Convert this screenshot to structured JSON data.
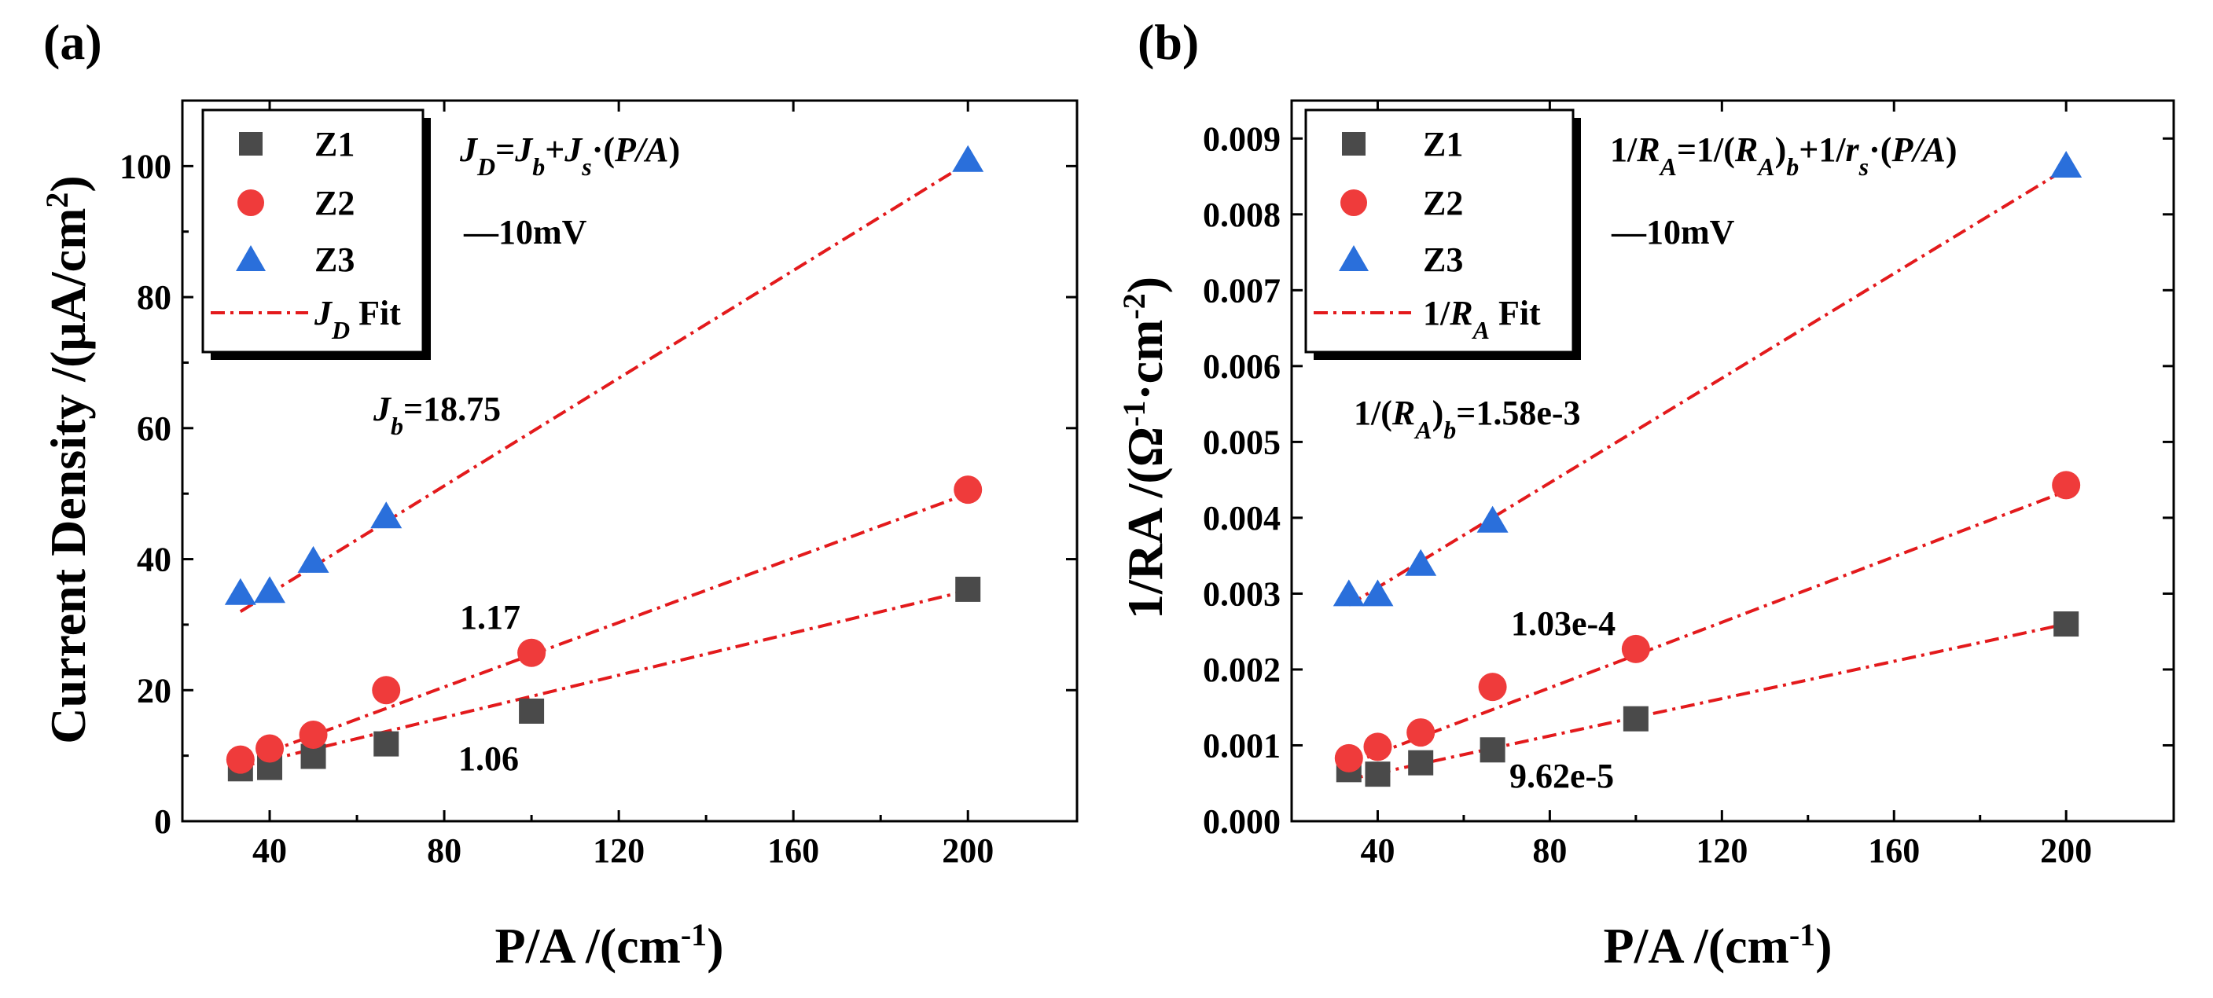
{
  "figure": {
    "panels": [
      {
        "panel_label": "(a)",
        "equation": {
          "p1": "J",
          "p1s": "D",
          "p2": "=",
          "p3": "J",
          "p3s": "b",
          "p4": "+",
          "p5": "J",
          "p5s": "s",
          "p6": "·(",
          "p7": "P/A",
          "p8": ")"
        },
        "bias": "—10mV",
        "intercept": {
          "prefix": "J",
          "prefix_sub": "b",
          "value": "=18.75"
        },
        "slope_labels": [
          "1.17",
          "1.06"
        ],
        "legend_fit": {
          "pre": "",
          "main": "J",
          "sub": "D",
          "post": " Fit"
        },
        "xlabel": {
          "main": "P/A /(cm",
          "sup": "-1",
          "end": ")"
        },
        "ylabel": {
          "main": "Current Density /(μA/cm",
          "sup": "2",
          "end": ")"
        }
      },
      {
        "panel_label": "(b)",
        "equation": {
          "p1": "1/",
          "p1r": "R",
          "p1s": "A",
          "p2": "=1/(",
          "p3": "R",
          "p3s": "A",
          "p4": ")",
          "p4s": "b",
          "p5": "+1/",
          "p6": "r",
          "p6s": "s",
          "p7": "·(",
          "p8": "P/A",
          "p9": ")"
        },
        "bias": "—10mV",
        "intercept": {
          "a": "1/(",
          "b": "R",
          "bs": "A",
          "c": ")",
          "cs": "b",
          "d": "=1.58e-3"
        },
        "slope_labels": [
          "1.03e-4",
          "9.62e-5"
        ],
        "legend_fit": {
          "pre": "1/",
          "main": "R",
          "sub": "A",
          "post": " Fit"
        },
        "xlabel": {
          "main": "P/A /(cm",
          "sup": "-1",
          "end": ")"
        },
        "ylabel": {
          "main": "1/RA /(Ω",
          "sup": "-1",
          "mid": "·cm",
          "sup2": "-2",
          "end": ")"
        }
      }
    ]
  },
  "chart_data": [
    {
      "type": "scatter",
      "title": "(a)",
      "xlabel": "P/A /(cm-1)",
      "ylabel": "Current Density /(μA/cm2)",
      "xlim": [
        20,
        225
      ],
      "ylim": [
        0,
        110
      ],
      "xticks": [
        40,
        80,
        120,
        160,
        200
      ],
      "yticks": [
        0,
        20,
        40,
        60,
        80,
        100
      ],
      "grid": false,
      "legend_position": "top-left",
      "x": [
        33.3,
        40,
        50,
        66.7,
        100,
        200
      ],
      "series": [
        {
          "name": "Z1",
          "marker": "square",
          "color": "#4a4a4a",
          "values": [
            8.0,
            8.2,
            9.9,
            11.8,
            16.8,
            35.4
          ]
        },
        {
          "name": "Z2",
          "marker": "circle",
          "color": "#ef3b3b",
          "values": [
            9.4,
            11.1,
            13.2,
            20.0,
            25.7,
            50.6
          ]
        },
        {
          "name": "Z3",
          "marker": "triangle",
          "color": "#2a6fdb",
          "values": [
            34.7,
            35.0,
            39.6,
            46.4,
            null,
            100.8
          ]
        }
      ],
      "fits": [
        {
          "name": "Z1 fit",
          "x": [
            33.3,
            200
          ],
          "y": [
            8.3,
            35.2
          ]
        },
        {
          "name": "Z2 fit",
          "x": [
            33.3,
            200
          ],
          "y": [
            9.0,
            50.0
          ]
        },
        {
          "name": "Z3 fit",
          "x": [
            33.3,
            200
          ],
          "y": [
            32.0,
            100.5
          ]
        }
      ],
      "fit_color": "#e31a1c",
      "legend": [
        "Z1",
        "Z2",
        "Z3",
        "JD Fit"
      ]
    },
    {
      "type": "scatter",
      "title": "(b)",
      "xlabel": "P/A /(cm-1)",
      "ylabel": "1/RA /(Ω-1·cm-2)",
      "xlim": [
        20,
        225
      ],
      "ylim": [
        0,
        0.0095
      ],
      "xticks": [
        40,
        80,
        120,
        160,
        200
      ],
      "yticks": [
        0.0,
        0.001,
        0.002,
        0.003,
        0.004,
        0.005,
        0.006,
        0.007,
        0.008,
        0.009
      ],
      "ytick_labels": [
        "0.000",
        "0.001",
        "0.002",
        "0.003",
        "0.004",
        "0.005",
        "0.006",
        "0.007",
        "0.008",
        "0.009"
      ],
      "grid": false,
      "legend_position": "top-left",
      "x": [
        33.3,
        40,
        50,
        66.7,
        100,
        200
      ],
      "series": [
        {
          "name": "Z1",
          "marker": "square",
          "color": "#4a4a4a",
          "values": [
            0.00068,
            0.00062,
            0.00077,
            0.00094,
            0.00135,
            0.0026
          ]
        },
        {
          "name": "Z2",
          "marker": "circle",
          "color": "#ef3b3b",
          "values": [
            0.00083,
            0.00098,
            0.00117,
            0.00177,
            0.00227,
            0.00443
          ]
        },
        {
          "name": "Z3",
          "marker": "triangle",
          "color": "#2a6fdb",
          "values": [
            0.00298,
            0.00298,
            0.00338,
            0.00395,
            null,
            0.00863
          ]
        }
      ],
      "fits": [
        {
          "name": "Z1 fit",
          "x": [
            33.3,
            200
          ],
          "y": [
            0.00055,
            0.0026
          ]
        },
        {
          "name": "Z2 fit",
          "x": [
            33.3,
            200
          ],
          "y": [
            0.00075,
            0.00435
          ]
        },
        {
          "name": "Z3 fit",
          "x": [
            33.3,
            200
          ],
          "y": [
            0.00285,
            0.0086
          ]
        }
      ],
      "fit_color": "#e31a1c",
      "legend": [
        "Z1",
        "Z2",
        "Z3",
        "1/RA Fit"
      ]
    }
  ]
}
